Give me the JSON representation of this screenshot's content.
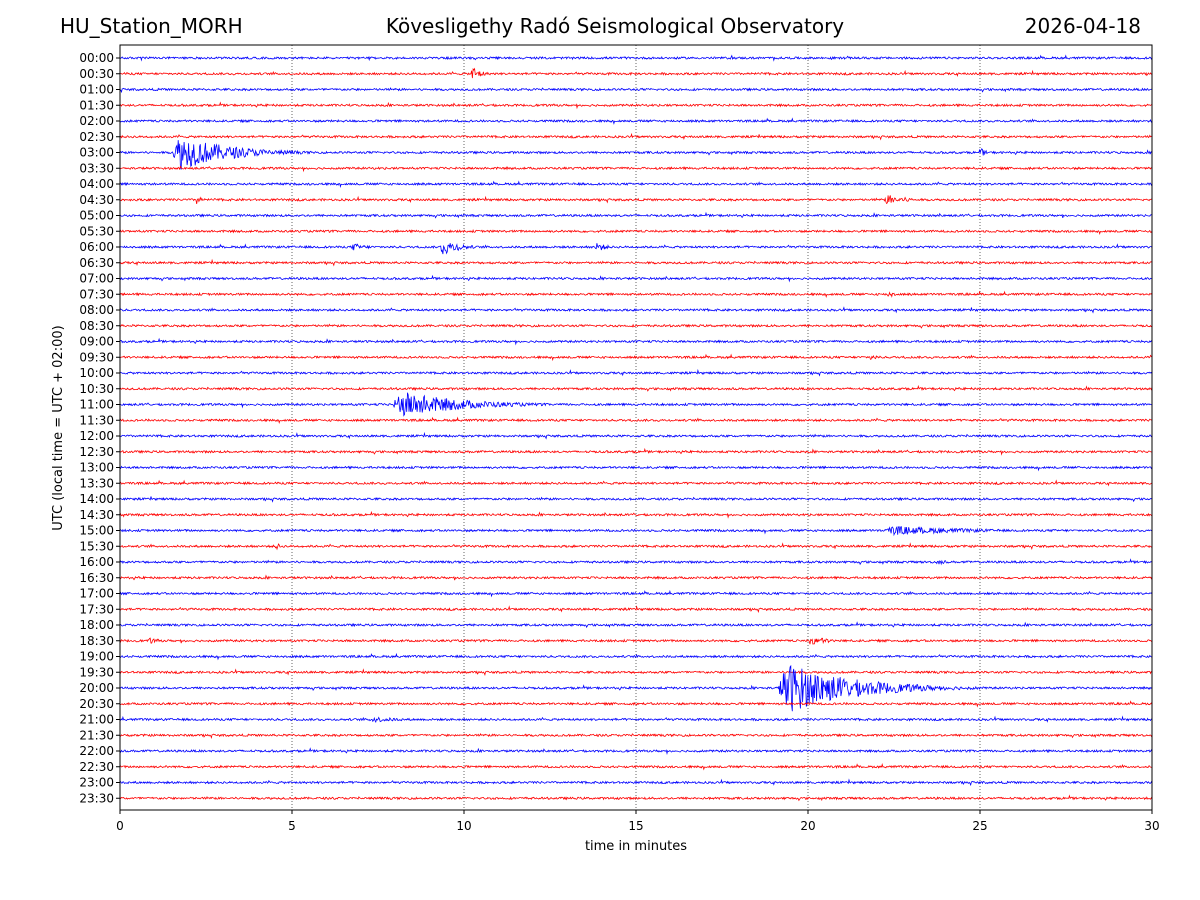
{
  "header": {
    "station": "HU_Station_MORH",
    "observatory": "Kövesligethy Radó Seismological Observatory",
    "date": "2026-04-18"
  },
  "chart_data": {
    "type": "line",
    "title": "Kövesligethy Radó Seismological Observatory",
    "xlabel": "time in minutes",
    "ylabel": "UTC (local time = UTC + 02:00)",
    "xlim": [
      0,
      30
    ],
    "x_ticks": [
      "0",
      "5",
      "10",
      "15",
      "20",
      "25",
      "30"
    ],
    "grid": "vertical dotted lines at 5-minute intervals",
    "series_colors": [
      "#0000ff",
      "#ff0000"
    ],
    "rows": [
      "00:00",
      "00:30",
      "01:00",
      "01:30",
      "02:00",
      "02:30",
      "03:00",
      "03:30",
      "04:00",
      "04:30",
      "05:00",
      "05:30",
      "06:00",
      "06:30",
      "07:00",
      "07:30",
      "08:00",
      "08:30",
      "09:00",
      "09:30",
      "10:00",
      "10:30",
      "11:00",
      "11:30",
      "12:00",
      "12:30",
      "13:00",
      "13:30",
      "14:00",
      "14:30",
      "15:00",
      "15:30",
      "16:00",
      "16:30",
      "17:00",
      "17:30",
      "18:00",
      "18:30",
      "19:00",
      "19:30",
      "20:00",
      "20:30",
      "21:00",
      "21:30",
      "22:00",
      "22:30",
      "23:00",
      "23:30"
    ],
    "events": [
      {
        "row": 1,
        "start_min": 10.2,
        "duration_min": 0.8,
        "amplitude": 0.55
      },
      {
        "row": 6,
        "start_min": 1.5,
        "duration_min": 4.5,
        "amplitude": 1.2
      },
      {
        "row": 6,
        "start_min": 25.0,
        "duration_min": 0.5,
        "amplitude": 0.3
      },
      {
        "row": 9,
        "start_min": 2.2,
        "duration_min": 0.5,
        "amplitude": 0.35
      },
      {
        "row": 9,
        "start_min": 22.2,
        "duration_min": 2.0,
        "amplitude": 0.35
      },
      {
        "row": 12,
        "start_min": 6.7,
        "duration_min": 1.5,
        "amplitude": 0.25
      },
      {
        "row": 12,
        "start_min": 9.3,
        "duration_min": 1.5,
        "amplitude": 0.6
      },
      {
        "row": 12,
        "start_min": 13.8,
        "duration_min": 0.8,
        "amplitude": 0.4
      },
      {
        "row": 15,
        "start_min": 22.3,
        "duration_min": 0.6,
        "amplitude": 0.3
      },
      {
        "row": 19,
        "start_min": 21.8,
        "duration_min": 0.5,
        "amplitude": 0.3
      },
      {
        "row": 22,
        "start_min": 7.9,
        "duration_min": 5.5,
        "amplitude": 0.9
      },
      {
        "row": 30,
        "start_min": 22.1,
        "duration_min": 7.5,
        "amplitude": 0.3
      },
      {
        "row": 31,
        "start_min": 4.5,
        "duration_min": 0.6,
        "amplitude": 0.25
      },
      {
        "row": 32,
        "start_min": 23.7,
        "duration_min": 1.0,
        "amplitude": 0.2
      },
      {
        "row": 37,
        "start_min": 0.8,
        "duration_min": 1.2,
        "amplitude": 0.2
      },
      {
        "row": 37,
        "start_min": 20.0,
        "duration_min": 1.6,
        "amplitude": 0.35
      },
      {
        "row": 40,
        "start_min": 19.1,
        "duration_min": 6.0,
        "amplitude": 1.7
      },
      {
        "row": 42,
        "start_min": 7.2,
        "duration_min": 2.8,
        "amplitude": 0.2
      }
    ]
  }
}
